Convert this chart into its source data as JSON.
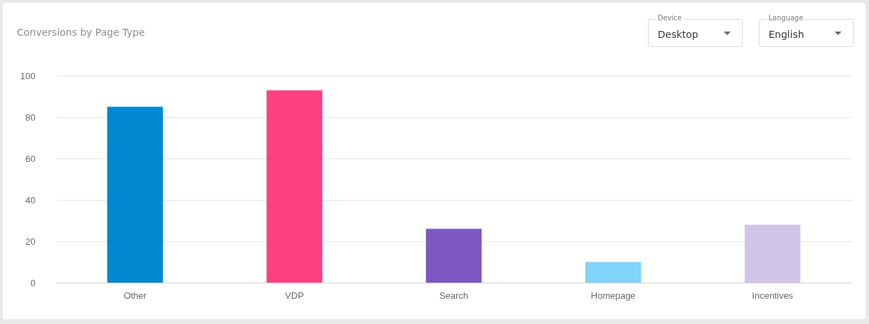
{
  "chart_data": {
    "type": "bar",
    "title": "Conversions by Page Type",
    "categories": [
      "Other",
      "VDP",
      "Search",
      "Homepage",
      "Incentives"
    ],
    "values": [
      85,
      93,
      26,
      10,
      28
    ],
    "colors": [
      "#0288d1",
      "#ff4081",
      "#7e57c2",
      "#81d4fa",
      "#d1c4e9"
    ],
    "ylim": [
      0,
      100
    ],
    "yticks": [
      0,
      20,
      40,
      60,
      80,
      100
    ],
    "grid": "y",
    "annotations": [
      "Device",
      "Desktop",
      "Language",
      "English"
    ]
  }
}
